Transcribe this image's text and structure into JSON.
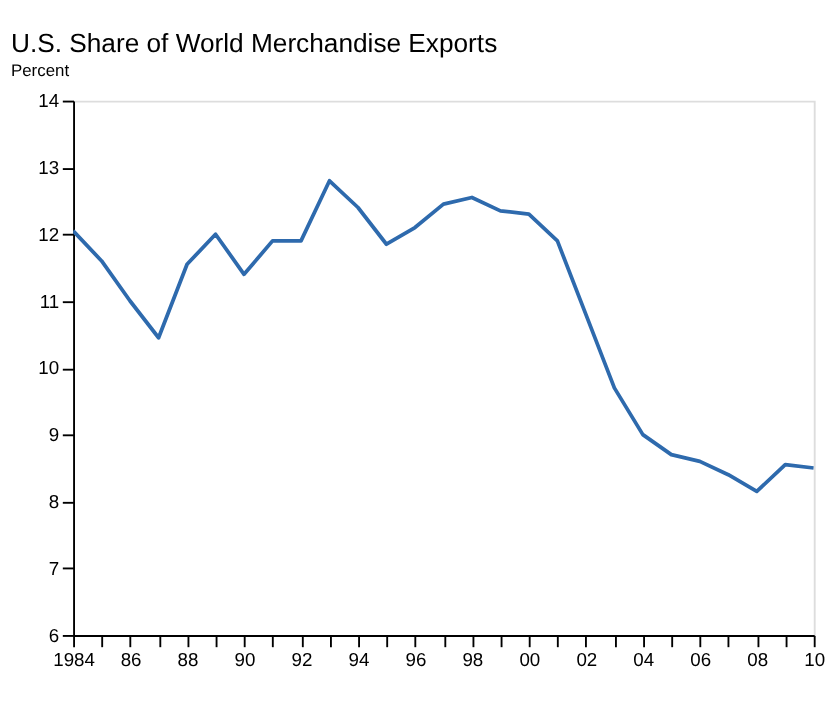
{
  "chart_data": {
    "type": "line",
    "title": "U.S. Share of World Merchandise Exports",
    "ylabel": "Percent",
    "x": [
      1984,
      1985,
      1986,
      1987,
      1988,
      1989,
      1990,
      1991,
      1992,
      1993,
      1994,
      1995,
      1996,
      1997,
      1998,
      1999,
      2000,
      2001,
      2002,
      2003,
      2004,
      2005,
      2006,
      2007,
      2008,
      2009,
      2010
    ],
    "series": [
      {
        "color": "#2e6aad",
        "values": [
          12.05,
          11.6,
          11.0,
          10.45,
          11.55,
          12.0,
          11.4,
          11.9,
          11.9,
          12.8,
          12.4,
          11.85,
          12.1,
          12.45,
          12.55,
          12.35,
          12.3,
          11.9,
          10.8,
          9.7,
          9.0,
          8.7,
          8.6,
          8.4,
          8.15,
          8.55,
          8.5
        ]
      }
    ],
    "xlim": [
      1984,
      2010
    ],
    "xticks": [
      {
        "value": 1984,
        "label": "1984"
      },
      {
        "value": 1985,
        "label": null
      },
      {
        "value": 1986,
        "label": "86"
      },
      {
        "value": 1987,
        "label": null
      },
      {
        "value": 1988,
        "label": "88"
      },
      {
        "value": 1989,
        "label": null
      },
      {
        "value": 1990,
        "label": "90"
      },
      {
        "value": 1991,
        "label": null
      },
      {
        "value": 1992,
        "label": "92"
      },
      {
        "value": 1993,
        "label": null
      },
      {
        "value": 1994,
        "label": "94"
      },
      {
        "value": 1995,
        "label": null
      },
      {
        "value": 1996,
        "label": "96"
      },
      {
        "value": 1997,
        "label": null
      },
      {
        "value": 1998,
        "label": "98"
      },
      {
        "value": 1999,
        "label": null
      },
      {
        "value": 2000,
        "label": "00"
      },
      {
        "value": 2001,
        "label": null
      },
      {
        "value": 2002,
        "label": "02"
      },
      {
        "value": 2003,
        "label": null
      },
      {
        "value": 2004,
        "label": "04"
      },
      {
        "value": 2005,
        "label": null
      },
      {
        "value": 2006,
        "label": "06"
      },
      {
        "value": 2007,
        "label": null
      },
      {
        "value": 2008,
        "label": "08"
      },
      {
        "value": 2009,
        "label": null
      },
      {
        "value": 2010,
        "label": "10"
      }
    ],
    "ylim": [
      6,
      14
    ],
    "yticks": [
      6,
      7,
      8,
      9,
      10,
      11,
      12,
      13,
      14
    ],
    "grid": false,
    "marker": "none",
    "line_style": "solid"
  }
}
